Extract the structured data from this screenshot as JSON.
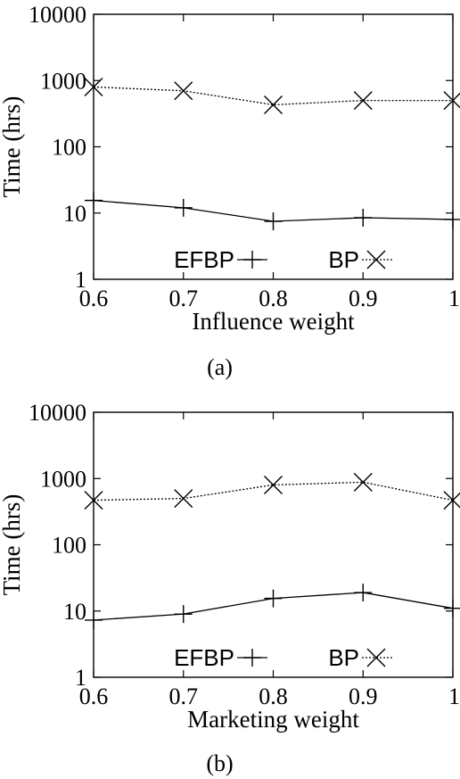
{
  "chart_data": [
    {
      "type": "line",
      "caption": "(a)",
      "xlabel": "Influence weight",
      "ylabel": "Time (hrs)",
      "x": [
        0.6,
        0.7,
        0.8,
        0.9,
        1
      ],
      "x_tick_labels": [
        "0.6",
        "0.7",
        "0.8",
        "0.9",
        "1"
      ],
      "y_scale": "log",
      "ylim": [
        1,
        10000
      ],
      "y_tick_labels": [
        "1",
        "10",
        "100",
        "1000",
        "10000"
      ],
      "xlim": [
        0.6,
        1
      ],
      "legend_placement": "bottom",
      "series": [
        {
          "name": "EFBP",
          "marker": "plus",
          "line_style": "solid",
          "values": [
            15.5,
            12,
            7.5,
            8.5,
            8
          ]
        },
        {
          "name": "BP",
          "marker": "cross",
          "line_style": "dotted",
          "values": [
            800,
            700,
            430,
            500,
            500
          ]
        }
      ]
    },
    {
      "type": "line",
      "caption": "(b)",
      "xlabel": "Marketing weight",
      "ylabel": "Time (hrs)",
      "x": [
        0.6,
        0.7,
        0.8,
        0.9,
        1
      ],
      "x_tick_labels": [
        "0.6",
        "0.7",
        "0.8",
        "0.9",
        "1"
      ],
      "y_scale": "log",
      "ylim": [
        1,
        10000
      ],
      "y_tick_labels": [
        "1",
        "10",
        "100",
        "1000",
        "10000"
      ],
      "xlim": [
        0.6,
        1
      ],
      "legend_placement": "bottom",
      "series": [
        {
          "name": "EFBP",
          "marker": "plus",
          "line_style": "solid",
          "values": [
            7.3,
            9,
            15.5,
            19,
            11
          ]
        },
        {
          "name": "BP",
          "marker": "cross",
          "line_style": "dotted",
          "values": [
            470,
            500,
            800,
            880,
            470
          ]
        }
      ]
    }
  ]
}
